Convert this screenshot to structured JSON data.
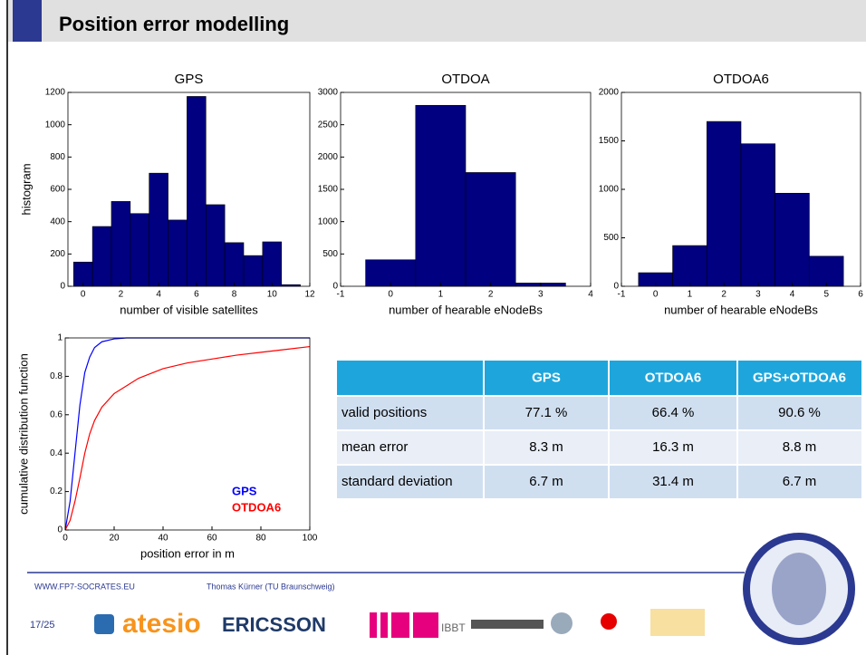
{
  "header": {
    "title": "Position error modelling"
  },
  "chart_data": [
    {
      "type": "histogram",
      "title": "GPS",
      "ylabel": "histogram",
      "xlabel": "number of visible satellites",
      "bins": [
        -0.5,
        0.5,
        1.5,
        2.5,
        3.5,
        4.5,
        5.5,
        6.5,
        7.5,
        8.5,
        9.5,
        10.5,
        11.5
      ],
      "values": [
        150,
        370,
        525,
        450,
        700,
        410,
        1175,
        505,
        270,
        190,
        275,
        10
      ],
      "color": "#000080",
      "xlim": [
        -0.8,
        12
      ],
      "xticks": [
        0,
        2,
        4,
        6,
        8,
        10,
        12
      ],
      "ylim": [
        0,
        1200
      ],
      "yticks": [
        0,
        200,
        400,
        600,
        800,
        1000,
        1200
      ]
    },
    {
      "type": "histogram",
      "title": "OTDOA",
      "xlabel": "number of hearable eNodeBs",
      "bins": [
        -0.5,
        0.5,
        1.5,
        2.5,
        3.5
      ],
      "values": [
        410,
        2800,
        1760,
        50
      ],
      "color": "#000080",
      "xlim": [
        -1,
        4
      ],
      "xticks": [
        -1,
        0,
        1,
        2,
        3,
        4
      ],
      "ylim": [
        0,
        3000
      ],
      "yticks": [
        0,
        500,
        1000,
        1500,
        2000,
        2500,
        3000
      ]
    },
    {
      "type": "histogram",
      "title": "OTDOA6",
      "xlabel": "number of hearable eNodeBs",
      "bins": [
        -0.5,
        0.5,
        1.5,
        2.5,
        3.5,
        4.5,
        5.5
      ],
      "values": [
        140,
        420,
        1700,
        1470,
        960,
        310
      ],
      "color": "#000080",
      "xlim": [
        -1,
        6
      ],
      "xticks": [
        -1,
        0,
        1,
        2,
        3,
        4,
        5,
        6
      ],
      "ylim": [
        0,
        2000
      ],
      "yticks": [
        0,
        500,
        1000,
        1500,
        2000
      ]
    },
    {
      "type": "line",
      "ylabel": "cumulative distribution function",
      "xlabel": "position error in m",
      "x": [
        0,
        2,
        4,
        6,
        8,
        10,
        12,
        15,
        20,
        25,
        30,
        40,
        50,
        60,
        70,
        80,
        90,
        100
      ],
      "series": [
        {
          "name": "GPS",
          "color": "#0000ff",
          "values": [
            0,
            0.15,
            0.4,
            0.65,
            0.82,
            0.9,
            0.95,
            0.98,
            0.995,
            1,
            1,
            1,
            1,
            1,
            1,
            1,
            1,
            1
          ]
        },
        {
          "name": "OTDOA6",
          "color": "#ff0000",
          "values": [
            0,
            0.05,
            0.15,
            0.27,
            0.4,
            0.5,
            0.57,
            0.64,
            0.71,
            0.75,
            0.79,
            0.84,
            0.87,
            0.89,
            0.91,
            0.925,
            0.94,
            0.955
          ]
        }
      ],
      "legend": "lower right",
      "xlim": [
        0,
        100
      ],
      "xticks": [
        0,
        20,
        40,
        60,
        80,
        100
      ],
      "ylim": [
        0,
        1
      ],
      "yticks": [
        0,
        0.2,
        0.4,
        0.6,
        0.8,
        1
      ]
    }
  ],
  "table": {
    "columns": [
      "GPS",
      "OTDOA6",
      "GPS+OTDOA6"
    ],
    "rows": [
      [
        "valid positions",
        "77.1 %",
        "66.4 %",
        "90.6 %"
      ],
      [
        "mean error",
        "8.3 m",
        "16.3 m",
        "8.8 m"
      ],
      [
        "standard deviation",
        "6.7 m",
        "31.4 m",
        "6.7 m"
      ]
    ]
  },
  "footer": {
    "website": "WWW.FP7-SOCRATES.EU",
    "author": "Thomas Kürner (TU Braunschweig)",
    "page": "17/25",
    "logos": [
      "atesio",
      "ERICSSON",
      "IBBT"
    ]
  }
}
